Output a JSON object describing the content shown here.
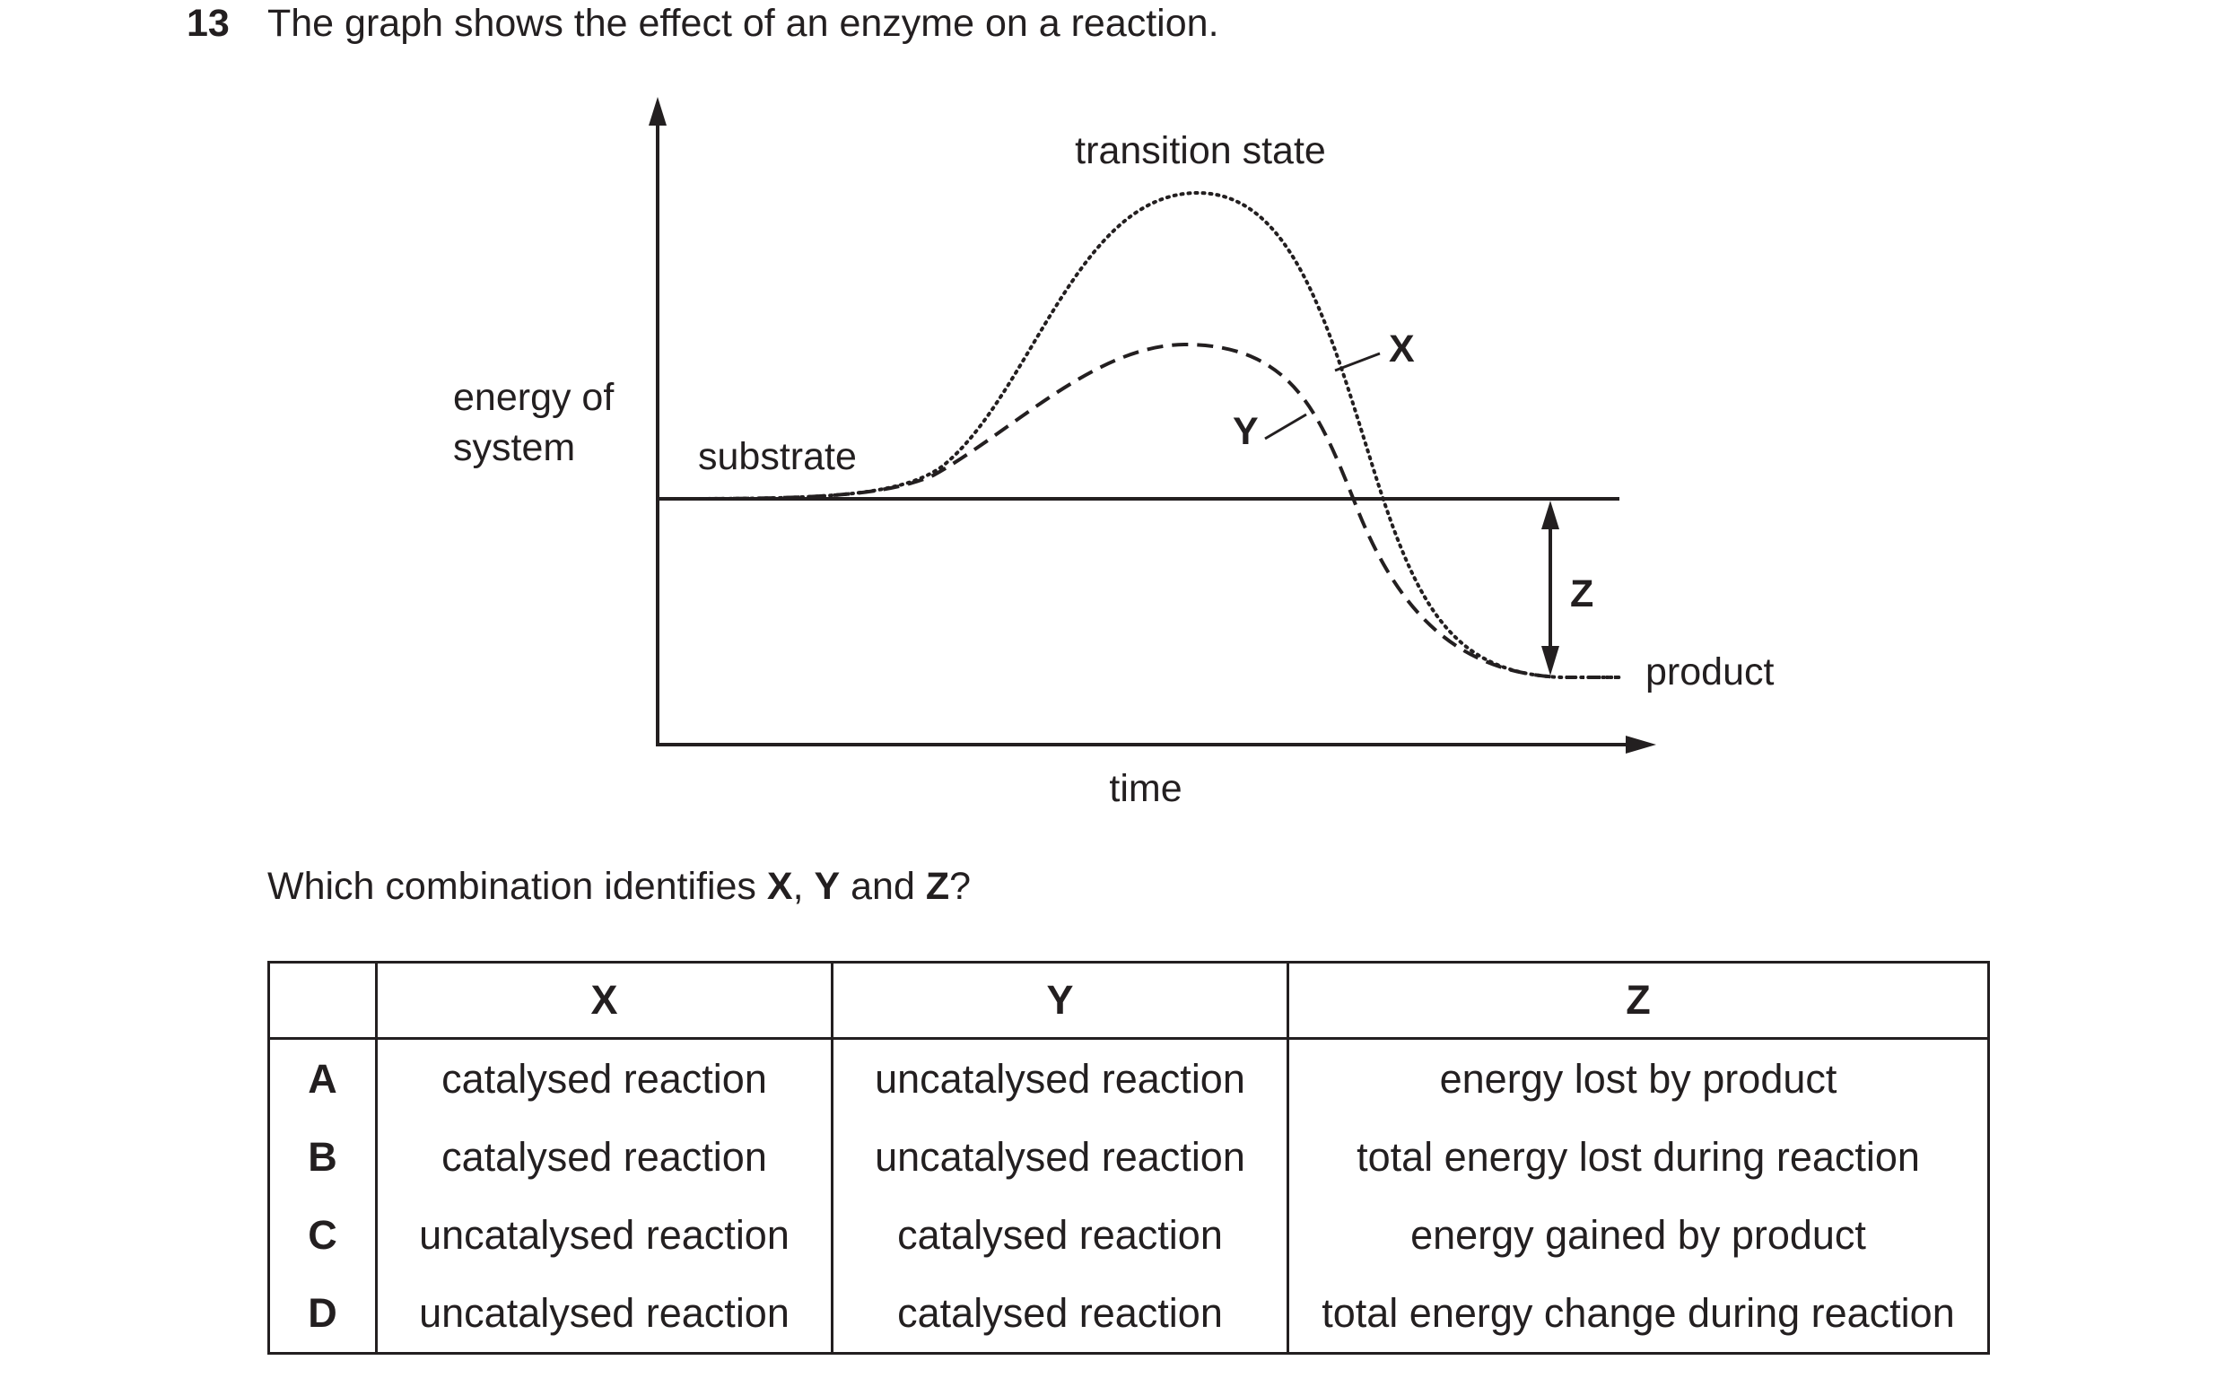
{
  "question": {
    "number": "13",
    "stem": "The graph shows the effect of an enzyme on a reaction.",
    "prompt_parts": [
      "Which combination identifies ",
      "X",
      ", ",
      "Y",
      " and ",
      "Z",
      "?"
    ]
  },
  "diagram": {
    "y_axis_label_line1": "energy of",
    "y_axis_label_line2": "system",
    "x_axis_label": "time",
    "substrate_label": "substrate",
    "transition_state_label": "transition state",
    "product_label": "product",
    "curve_x_label": "X",
    "curve_y_label": "Y",
    "arrow_z_label": "Z"
  },
  "table": {
    "headers": [
      "",
      "X",
      "Y",
      "Z"
    ],
    "rows": [
      {
        "letter": "A",
        "x": "catalysed reaction",
        "y": "uncatalysed reaction",
        "z": "energy lost by product"
      },
      {
        "letter": "B",
        "x": "catalysed reaction",
        "y": "uncatalysed reaction",
        "z": "total energy lost during reaction"
      },
      {
        "letter": "C",
        "x": "uncatalysed reaction",
        "y": "catalysed reaction",
        "z": "energy gained by product"
      },
      {
        "letter": "D",
        "x": "uncatalysed reaction",
        "y": "catalysed reaction",
        "z": "total energy change during reaction"
      }
    ]
  }
}
